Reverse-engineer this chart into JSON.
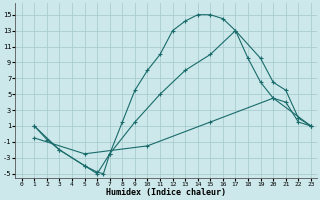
{
  "xlabel": "Humidex (Indice chaleur)",
  "bg_color": "#cce8ea",
  "grid_color": "#aacdd0",
  "line_color": "#1a6b6b",
  "xlim": [
    -0.5,
    23.5
  ],
  "ylim": [
    -5.5,
    16.5
  ],
  "xticks": [
    0,
    1,
    2,
    3,
    4,
    5,
    6,
    7,
    8,
    9,
    10,
    11,
    12,
    13,
    14,
    15,
    16,
    17,
    18,
    19,
    20,
    21,
    22,
    23
  ],
  "yticks": [
    -5,
    -3,
    -1,
    1,
    3,
    5,
    7,
    9,
    11,
    13,
    15
  ],
  "line1_x": [
    1,
    2,
    3,
    5,
    6,
    6.5,
    7,
    8,
    9,
    10,
    11,
    12,
    13,
    14,
    15,
    16,
    17,
    18,
    19,
    20,
    21,
    22,
    23
  ],
  "line1_y": [
    1,
    -0.7,
    -2.0,
    -4.0,
    -4.8,
    -5.0,
    -2.5,
    1.5,
    5.5,
    8.0,
    10.0,
    13.0,
    14.2,
    15.0,
    15.0,
    14.5,
    13.0,
    9.5,
    6.5,
    4.5,
    4.0,
    1.5,
    1.0
  ],
  "line2_x": [
    1,
    3,
    5,
    6,
    7,
    9,
    11,
    13,
    15,
    17,
    19,
    20,
    21,
    22,
    23
  ],
  "line2_y": [
    1,
    -2.0,
    -4.0,
    -5.0,
    -2.5,
    1.5,
    5.0,
    8.0,
    10.0,
    13.0,
    9.5,
    6.5,
    5.5,
    2.0,
    1.0
  ],
  "line3_x": [
    1,
    5,
    10,
    15,
    20,
    23
  ],
  "line3_y": [
    -0.5,
    -2.5,
    -1.5,
    1.5,
    4.5,
    1.0
  ]
}
